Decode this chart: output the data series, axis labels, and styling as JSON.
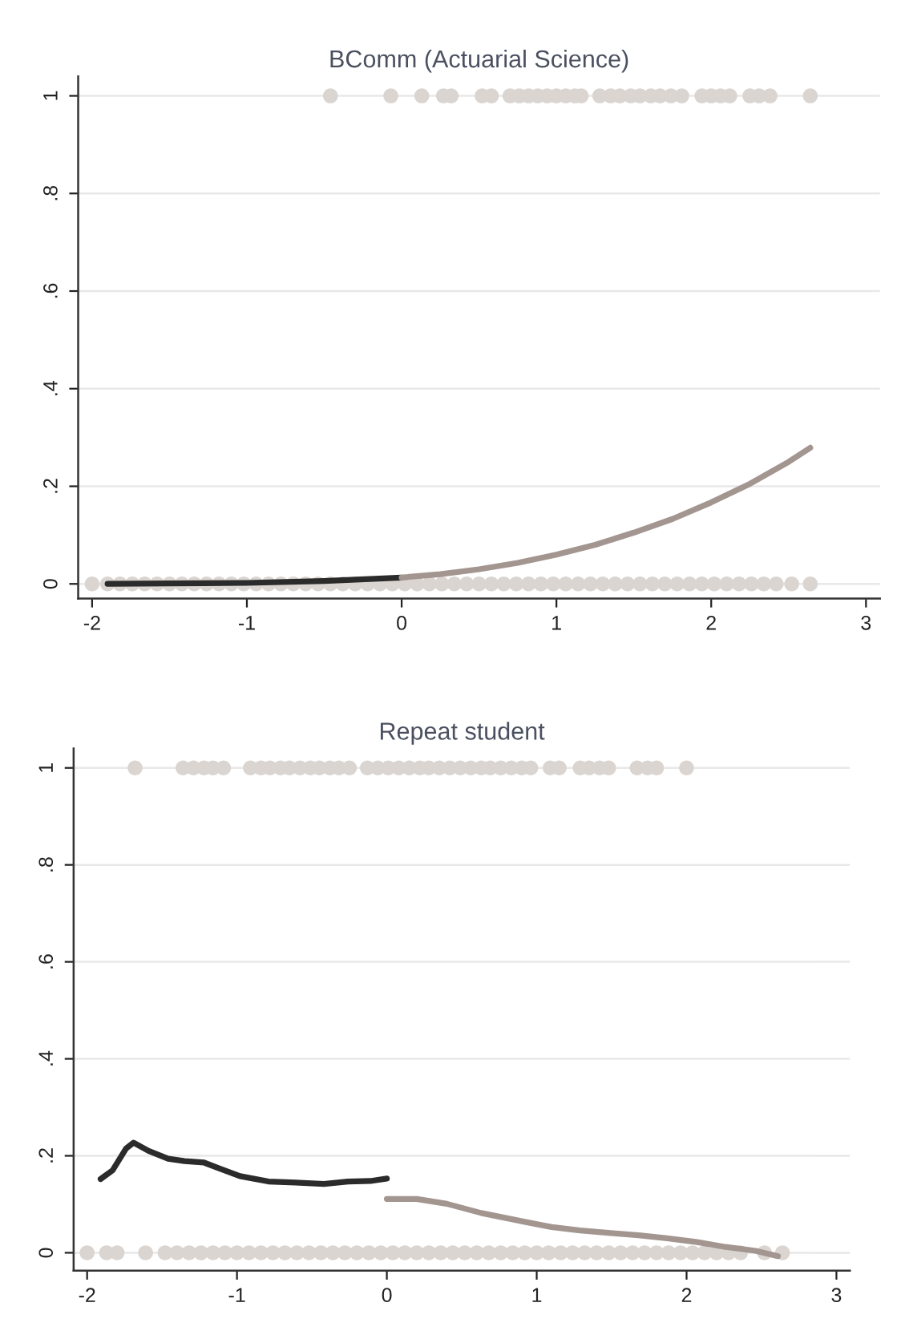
{
  "chart_data": [
    {
      "type": "scatter",
      "title": "BComm (Actuarial Science)",
      "xlim": [
        -2.09,
        3.09
      ],
      "ylim": [
        -0.03,
        1.04
      ],
      "xticks": [
        -2,
        -1,
        0,
        1,
        2,
        3
      ],
      "yticks": [
        0,
        {
          "value": 0.2,
          "label": ".2"
        },
        {
          "value": 0.4,
          "label": ".4"
        },
        {
          "value": 0.6,
          "label": ".6"
        },
        {
          "value": 0.8,
          "label": ".8"
        },
        1
      ],
      "grid": "y",
      "legend": false,
      "marker": "circle",
      "series": [
        {
          "color": "#dbd5d1",
          "x": [
            -2.0,
            -1.9,
            -1.82,
            -1.74,
            -1.66,
            -1.58,
            -1.5,
            -1.42,
            -1.34,
            -1.26,
            -1.18,
            -1.1,
            -1.02,
            -0.94,
            -0.86,
            -0.78,
            -0.7,
            -0.62,
            -0.54,
            -0.46,
            -0.38,
            -0.3,
            -0.22,
            -0.14,
            -0.06,
            0.02,
            0.1,
            0.18,
            0.26,
            0.34,
            0.42,
            0.5,
            0.58,
            0.66,
            0.74,
            0.82,
            0.9,
            0.98,
            1.06,
            1.14,
            1.22,
            1.3,
            1.38,
            1.46,
            1.54,
            1.62,
            1.7,
            1.78,
            1.86,
            1.94,
            2.02,
            2.1,
            2.18,
            2.26,
            2.34,
            2.42,
            2.52,
            2.64
          ],
          "values": [
            0,
            0,
            0,
            0,
            0,
            0,
            0,
            0,
            0,
            0,
            0,
            0,
            0,
            0,
            0,
            0,
            0,
            0,
            0,
            0,
            0,
            0,
            0,
            0,
            0,
            0,
            0,
            0,
            0,
            0,
            0,
            0,
            0,
            0,
            0,
            0,
            0,
            0,
            0,
            0,
            0,
            0,
            0,
            0,
            0,
            0,
            0,
            0,
            0,
            0,
            0,
            0,
            0,
            0,
            0,
            0,
            0,
            0
          ]
        },
        {
          "color": "#dbd5d1",
          "x": [
            -0.46,
            -0.07,
            0.13,
            0.27,
            0.32,
            0.52,
            0.58,
            0.7,
            0.76,
            0.82,
            0.88,
            0.94,
            1.0,
            1.06,
            1.12,
            1.16,
            1.28,
            1.35,
            1.41,
            1.48,
            1.54,
            1.61,
            1.67,
            1.74,
            1.81,
            1.94,
            2.0,
            2.06,
            2.12,
            2.25,
            2.31,
            2.38,
            2.64
          ],
          "values": [
            1,
            1,
            1,
            1,
            1,
            1,
            1,
            1,
            1,
            1,
            1,
            1,
            1,
            1,
            1,
            1,
            1,
            1,
            1,
            1,
            1,
            1,
            1,
            1,
            1,
            1,
            1,
            1,
            1,
            1,
            1,
            1,
            1
          ]
        },
        {
          "type": "line",
          "color": "#2b2b2b",
          "marker": "none",
          "x": [
            -1.9,
            -1.5,
            -1.0,
            -0.5,
            0.0
          ],
          "values": [
            0.0,
            0.001,
            0.002,
            0.006,
            0.013
          ]
        },
        {
          "type": "line",
          "color": "#a39590",
          "marker": "none",
          "x": [
            0.0,
            0.25,
            0.5,
            0.75,
            1.0,
            1.25,
            1.5,
            1.75,
            2.0,
            2.25,
            2.5,
            2.64
          ],
          "values": [
            0.013,
            0.02,
            0.03,
            0.043,
            0.06,
            0.08,
            0.105,
            0.133,
            0.167,
            0.205,
            0.25,
            0.279
          ]
        }
      ]
    },
    {
      "type": "scatter",
      "title": "Repeat student",
      "xlim": [
        -2.09,
        3.09
      ],
      "ylim": [
        -0.037,
        1.04
      ],
      "xticks": [
        -2,
        -1,
        0,
        1,
        2,
        3
      ],
      "yticks": [
        0,
        {
          "value": 0.2,
          "label": ".2"
        },
        {
          "value": 0.4,
          "label": ".4"
        },
        {
          "value": 0.6,
          "label": ".6"
        },
        {
          "value": 0.8,
          "label": ".8"
        },
        1
      ],
      "grid": "y",
      "legend": false,
      "marker": "circle",
      "series": [
        {
          "color": "#dbd5d1",
          "x": [
            -2.0,
            -1.87,
            -1.8,
            -1.61,
            -1.48,
            -1.4,
            -1.32,
            -1.24,
            -1.16,
            -1.08,
            -1.0,
            -0.92,
            -0.84,
            -0.76,
            -0.68,
            -0.6,
            -0.52,
            -0.44,
            -0.36,
            -0.28,
            -0.2,
            -0.12,
            -0.04,
            0.04,
            0.12,
            0.2,
            0.28,
            0.36,
            0.44,
            0.52,
            0.6,
            0.68,
            0.76,
            0.84,
            0.92,
            1.0,
            1.08,
            1.16,
            1.24,
            1.32,
            1.4,
            1.48,
            1.56,
            1.64,
            1.72,
            1.8,
            1.88,
            1.96,
            2.04,
            2.12,
            2.2,
            2.28,
            2.36,
            2.52,
            2.64
          ],
          "values": [
            0,
            0,
            0,
            0,
            0,
            0,
            0,
            0,
            0,
            0,
            0,
            0,
            0,
            0,
            0,
            0,
            0,
            0,
            0,
            0,
            0,
            0,
            0,
            0,
            0,
            0,
            0,
            0,
            0,
            0,
            0,
            0,
            0,
            0,
            0,
            0,
            0,
            0,
            0,
            0,
            0,
            0,
            0,
            0,
            0,
            0,
            0,
            0,
            0,
            0,
            0,
            0,
            0,
            0,
            0
          ]
        },
        {
          "color": "#dbd5d1",
          "x": [
            -1.68,
            -1.36,
            -1.29,
            -1.22,
            -1.16,
            -1.09,
            -0.91,
            -0.84,
            -0.78,
            -0.71,
            -0.65,
            -0.58,
            -0.51,
            -0.45,
            -0.38,
            -0.32,
            -0.25,
            -0.13,
            -0.06,
            0.01,
            0.08,
            0.15,
            0.22,
            0.28,
            0.35,
            0.42,
            0.49,
            0.56,
            0.63,
            0.69,
            0.76,
            0.83,
            0.9,
            0.96,
            1.09,
            1.15,
            1.29,
            1.35,
            1.42,
            1.48,
            1.67,
            1.74,
            1.8,
            2.0
          ],
          "values": [
            1,
            1,
            1,
            1,
            1,
            1,
            1,
            1,
            1,
            1,
            1,
            1,
            1,
            1,
            1,
            1,
            1,
            1,
            1,
            1,
            1,
            1,
            1,
            1,
            1,
            1,
            1,
            1,
            1,
            1,
            1,
            1,
            1,
            1,
            1,
            1,
            1,
            1,
            1,
            1,
            1,
            1,
            1,
            1
          ]
        },
        {
          "type": "line",
          "color": "#2b2b2b",
          "marker": "none",
          "x": [
            -1.91,
            -1.83,
            -1.74,
            -1.69,
            -1.59,
            -1.46,
            -1.35,
            -1.22,
            -1.12,
            -0.98,
            -0.79,
            -0.61,
            -0.42,
            -0.26,
            -0.11,
            0.0
          ],
          "values": [
            0.152,
            0.17,
            0.215,
            0.227,
            0.21,
            0.194,
            0.189,
            0.186,
            0.174,
            0.158,
            0.147,
            0.145,
            0.142,
            0.147,
            0.148,
            0.153
          ]
        },
        {
          "type": "line",
          "color": "#a39590",
          "marker": "none",
          "x": [
            0.0,
            0.2,
            0.4,
            0.63,
            0.9,
            1.1,
            1.29,
            1.48,
            1.68,
            1.87,
            2.07,
            2.26,
            2.46,
            2.61
          ],
          "values": [
            0.111,
            0.111,
            0.101,
            0.082,
            0.065,
            0.053,
            0.046,
            0.041,
            0.036,
            0.03,
            0.022,
            0.012,
            0.004,
            -0.007
          ]
        }
      ]
    }
  ]
}
